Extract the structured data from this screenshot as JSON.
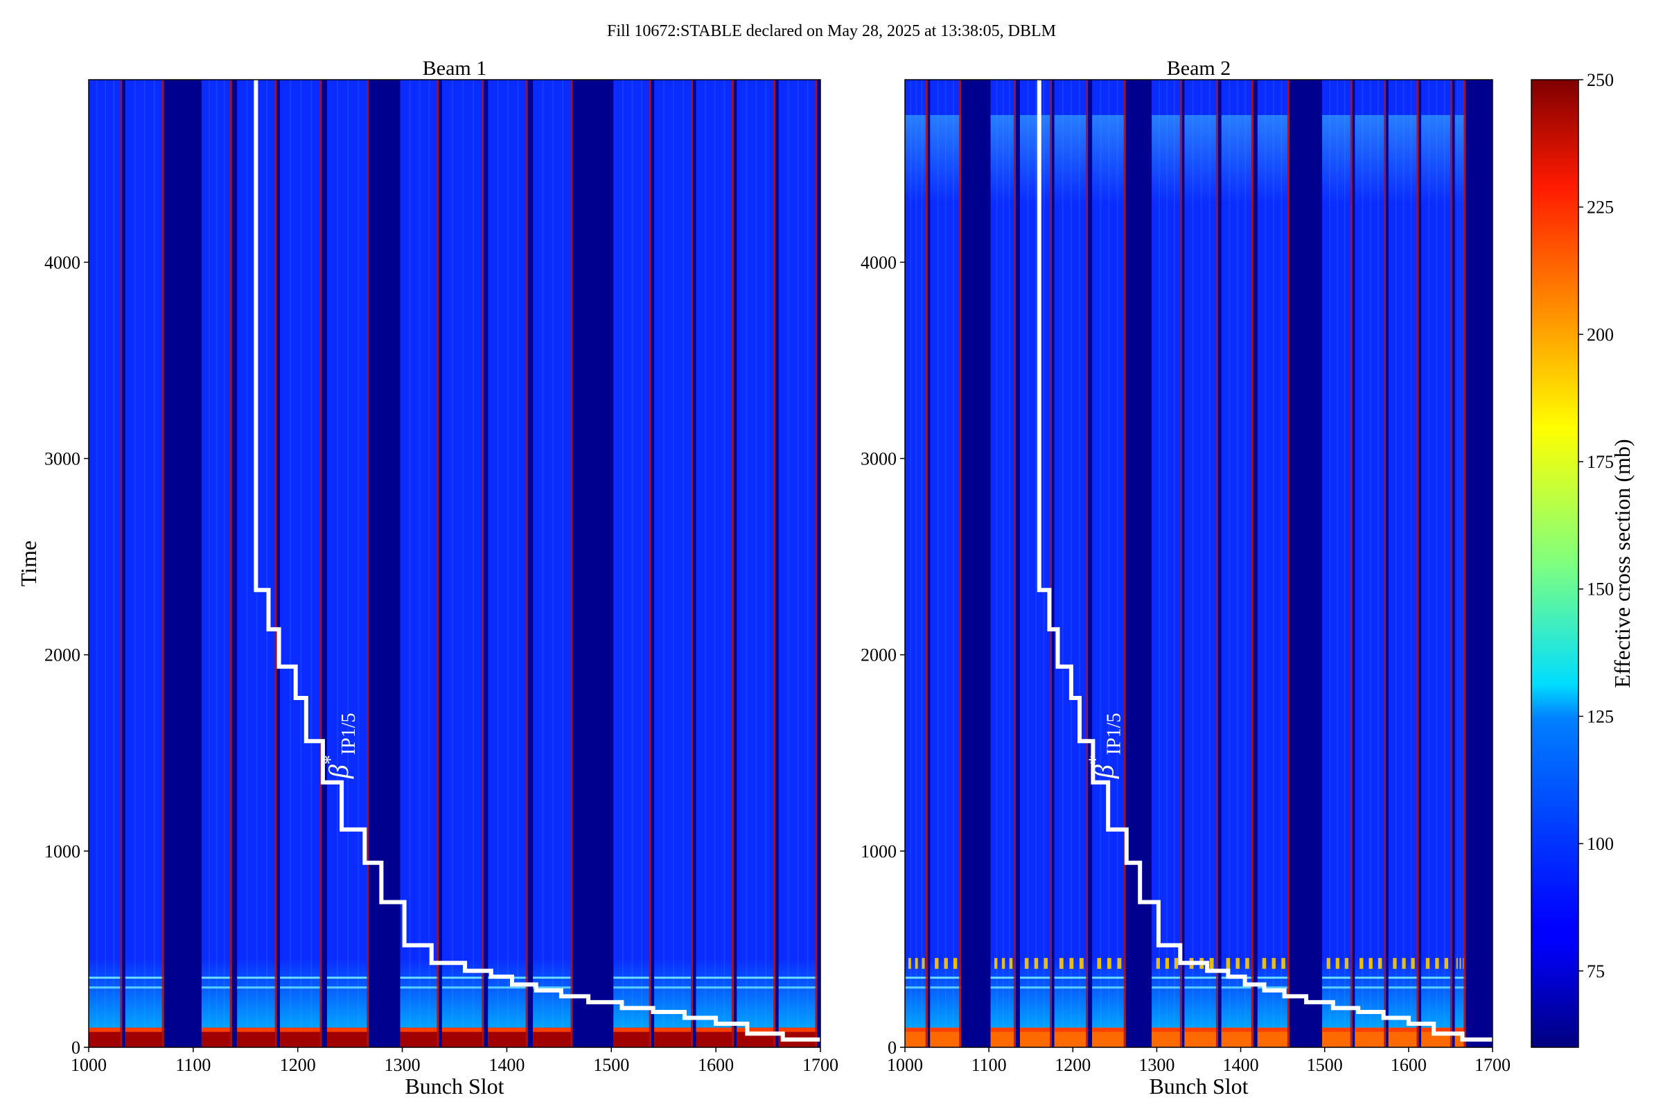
{
  "figure": {
    "suptitle": "Fill 10672:STABLE declared on May 28, 2025 at 13:38:05, DBLM"
  },
  "chart_data": [
    {
      "type": "heatmap",
      "title": "Beam 1",
      "xlabel": "Bunch Slot",
      "ylabel": "Time",
      "xlim": [
        1000,
        1700
      ],
      "ylim": [
        0,
        4930
      ],
      "xticks": [
        1000,
        1100,
        1200,
        1300,
        1400,
        1500,
        1600,
        1700
      ],
      "yticks": [
        0,
        1000,
        2000,
        3000,
        4000
      ],
      "filled_bunch_trains": [
        [
          1000,
          1032
        ],
        [
          1035,
          1072
        ],
        [
          1108,
          1137
        ],
        [
          1142,
          1180
        ],
        [
          1183,
          1223
        ],
        [
          1228,
          1268
        ],
        [
          1298,
          1335
        ],
        [
          1338,
          1378
        ],
        [
          1382,
          1420
        ],
        [
          1425,
          1463
        ],
        [
          1502,
          1538
        ],
        [
          1541,
          1578
        ],
        [
          1581,
          1617
        ],
        [
          1620,
          1657
        ],
        [
          1660,
          1697
        ]
      ],
      "typical_value_mb": 80,
      "high_value_region": "t < 100: values near 250 mb",
      "intermediate_region": "t 100-450: values 100-150 mb",
      "annotation": {
        "symbol": "β",
        "superscript": "*",
        "subscript": "IP1/5"
      },
      "beta_star_step_curve": {
        "color": "#ffffff",
        "points": [
          [
            1160,
            4930
          ],
          [
            1160,
            2330
          ],
          [
            1172,
            2330
          ],
          [
            1172,
            2130
          ],
          [
            1182,
            2130
          ],
          [
            1182,
            1940
          ],
          [
            1198,
            1940
          ],
          [
            1198,
            1780
          ],
          [
            1208,
            1780
          ],
          [
            1208,
            1560
          ],
          [
            1224,
            1560
          ],
          [
            1224,
            1350
          ],
          [
            1242,
            1350
          ],
          [
            1242,
            1110
          ],
          [
            1264,
            1110
          ],
          [
            1264,
            940
          ],
          [
            1280,
            940
          ],
          [
            1280,
            740
          ],
          [
            1302,
            740
          ],
          [
            1302,
            520
          ],
          [
            1328,
            520
          ],
          [
            1328,
            430
          ],
          [
            1360,
            430
          ],
          [
            1360,
            390
          ],
          [
            1385,
            390
          ],
          [
            1385,
            360
          ],
          [
            1405,
            360
          ],
          [
            1405,
            320
          ],
          [
            1428,
            320
          ],
          [
            1428,
            290
          ],
          [
            1452,
            290
          ],
          [
            1452,
            260
          ],
          [
            1478,
            260
          ],
          [
            1478,
            230
          ],
          [
            1510,
            230
          ],
          [
            1510,
            200
          ],
          [
            1540,
            200
          ],
          [
            1540,
            180
          ],
          [
            1570,
            180
          ],
          [
            1570,
            150
          ],
          [
            1600,
            150
          ],
          [
            1600,
            120
          ],
          [
            1630,
            120
          ],
          [
            1630,
            70
          ],
          [
            1664,
            70
          ],
          [
            1664,
            40
          ],
          [
            1700,
            40
          ]
        ]
      }
    },
    {
      "type": "heatmap",
      "title": "Beam 2",
      "xlabel": "Bunch Slot",
      "ylabel": "",
      "xlim": [
        1000,
        1700
      ],
      "ylim": [
        0,
        4930
      ],
      "xticks": [
        1000,
        1100,
        1200,
        1300,
        1400,
        1500,
        1600,
        1700
      ],
      "yticks": [
        0,
        1000,
        2000,
        3000,
        4000
      ],
      "filled_bunch_trains": [
        [
          1000,
          1027
        ],
        [
          1030,
          1067
        ],
        [
          1102,
          1132
        ],
        [
          1137,
          1175
        ],
        [
          1178,
          1218
        ],
        [
          1223,
          1263
        ],
        [
          1294,
          1330
        ],
        [
          1333,
          1373
        ],
        [
          1377,
          1415
        ],
        [
          1420,
          1458
        ],
        [
          1497,
          1533
        ],
        [
          1536,
          1573
        ],
        [
          1576,
          1612
        ],
        [
          1615,
          1652
        ],
        [
          1655,
          1668
        ]
      ],
      "typical_value_mb": 80,
      "high_value_region": "t < 100: values up to 250 mb",
      "intermediate_region": "t 100-450: values 100-150 mb; bright streaks near t 4400-4700",
      "annotation": {
        "symbol": "β",
        "superscript": "*",
        "subscript": "IP1/5"
      },
      "beta_star_step_curve": {
        "color": "#ffffff",
        "points": [
          [
            1160,
            4930
          ],
          [
            1160,
            2330
          ],
          [
            1172,
            2330
          ],
          [
            1172,
            2130
          ],
          [
            1182,
            2130
          ],
          [
            1182,
            1940
          ],
          [
            1198,
            1940
          ],
          [
            1198,
            1780
          ],
          [
            1208,
            1780
          ],
          [
            1208,
            1560
          ],
          [
            1224,
            1560
          ],
          [
            1224,
            1350
          ],
          [
            1242,
            1350
          ],
          [
            1242,
            1110
          ],
          [
            1264,
            1110
          ],
          [
            1264,
            940
          ],
          [
            1280,
            940
          ],
          [
            1280,
            740
          ],
          [
            1302,
            740
          ],
          [
            1302,
            520
          ],
          [
            1328,
            520
          ],
          [
            1328,
            430
          ],
          [
            1360,
            430
          ],
          [
            1360,
            390
          ],
          [
            1385,
            390
          ],
          [
            1385,
            360
          ],
          [
            1405,
            360
          ],
          [
            1405,
            320
          ],
          [
            1428,
            320
          ],
          [
            1428,
            290
          ],
          [
            1452,
            290
          ],
          [
            1452,
            260
          ],
          [
            1478,
            260
          ],
          [
            1478,
            230
          ],
          [
            1510,
            230
          ],
          [
            1510,
            200
          ],
          [
            1540,
            200
          ],
          [
            1540,
            180
          ],
          [
            1570,
            180
          ],
          [
            1570,
            150
          ],
          [
            1600,
            150
          ],
          [
            1600,
            120
          ],
          [
            1630,
            120
          ],
          [
            1630,
            70
          ],
          [
            1664,
            70
          ],
          [
            1664,
            40
          ],
          [
            1700,
            40
          ]
        ]
      }
    }
  ],
  "colorbar": {
    "label": "Effective cross section (mb)",
    "colormap": "jet",
    "range": [
      60,
      250
    ],
    "ticks": [
      75,
      100,
      125,
      150,
      175,
      200,
      225,
      250
    ]
  }
}
